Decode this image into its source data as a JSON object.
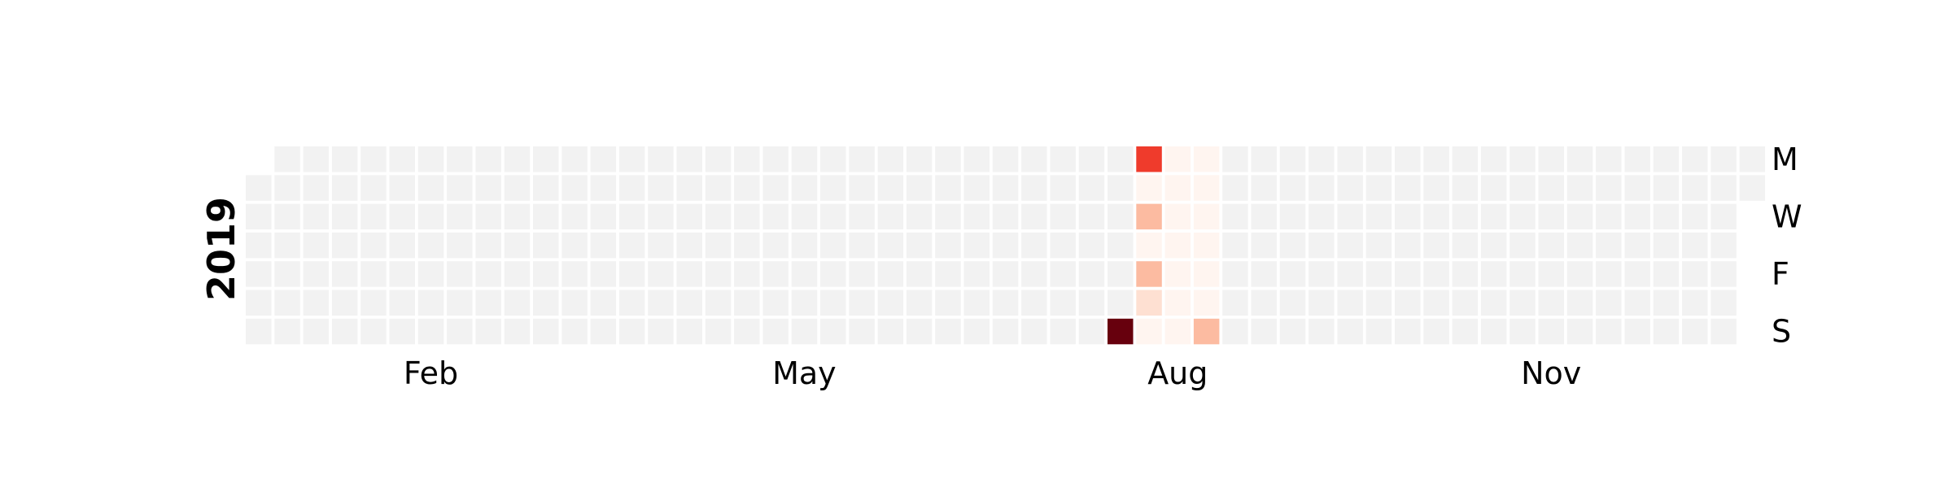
{
  "chart_data": {
    "type": "heatmap",
    "year": "2019",
    "month_labels": [
      "Feb",
      "May",
      "Aug",
      "Nov"
    ],
    "day_labels": [
      "M",
      "W",
      "F",
      "S"
    ],
    "colors": {
      "empty": "#f2f2f2",
      "scale": [
        "#fff5f0",
        "#fee0d2",
        "#fcbba1",
        "#fc9272",
        "#fb6a4a",
        "#ef3b2c",
        "#cb181d",
        "#a50f15",
        "#67000d"
      ]
    },
    "value_range": [
      0,
      1
    ],
    "values": [
      {
        "date": "2019-08-04",
        "value": 1.0
      },
      {
        "date": "2019-08-05",
        "value": 0.6
      },
      {
        "date": "2019-08-06",
        "value": 0.04
      },
      {
        "date": "2019-08-07",
        "value": 0.28
      },
      {
        "date": "2019-08-08",
        "value": 0.04
      },
      {
        "date": "2019-08-09",
        "value": 0.3
      },
      {
        "date": "2019-08-10",
        "value": 0.12
      },
      {
        "date": "2019-08-11",
        "value": 0.04
      },
      {
        "date": "2019-08-12",
        "value": 0.03
      },
      {
        "date": "2019-08-13",
        "value": 0.03
      },
      {
        "date": "2019-08-14",
        "value": 0.03
      },
      {
        "date": "2019-08-15",
        "value": 0.03
      },
      {
        "date": "2019-08-16",
        "value": 0.03
      },
      {
        "date": "2019-08-17",
        "value": 0.03
      },
      {
        "date": "2019-08-18",
        "value": 0.03
      },
      {
        "date": "2019-08-19",
        "value": 0.05
      },
      {
        "date": "2019-08-20",
        "value": 0.05
      },
      {
        "date": "2019-08-21",
        "value": 0.05
      },
      {
        "date": "2019-08-22",
        "value": 0.05
      },
      {
        "date": "2019-08-23",
        "value": 0.05
      },
      {
        "date": "2019-08-24",
        "value": 0.05
      },
      {
        "date": "2019-08-25",
        "value": 0.25
      }
    ]
  }
}
